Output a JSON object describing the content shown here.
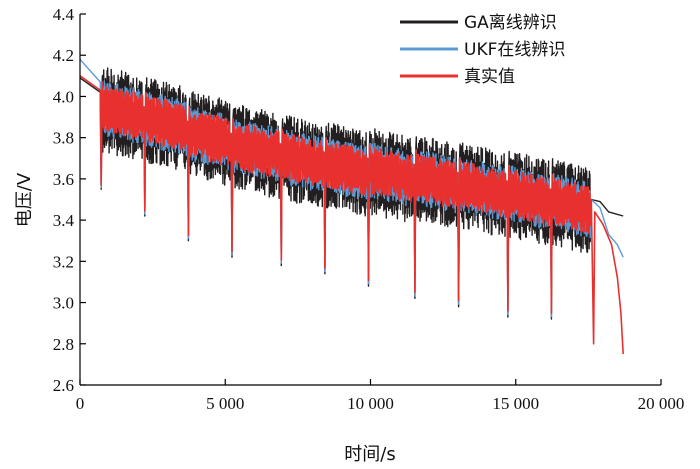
{
  "chart_data": {
    "type": "line",
    "title": "",
    "xlabel": "时间/s",
    "ylabel": "电压/V",
    "xlim": [
      0,
      20000
    ],
    "ylim": [
      2.6,
      4.4
    ],
    "x_ticks": [
      0,
      5000,
      10000,
      15000,
      20000
    ],
    "x_tick_labels": [
      "0",
      "5 000",
      "10 000",
      "15 000",
      "20 000"
    ],
    "y_ticks": [
      2.6,
      2.8,
      3.0,
      3.2,
      3.4,
      3.6,
      3.8,
      4.0,
      4.2,
      4.4
    ],
    "y_tick_labels": [
      "2.6",
      "2.8",
      "3.0",
      "3.2",
      "3.4",
      "3.6",
      "3.8",
      "4.0",
      "4.2",
      "4.4"
    ],
    "grid": false,
    "legend_position": "top-right",
    "pulse_segments": [
      {
        "start": 700,
        "end": 2200,
        "base": 3.95,
        "dip": 3.55
      },
      {
        "start": 2200,
        "end": 3700,
        "base": 3.9,
        "dip": 3.42
      },
      {
        "start": 3700,
        "end": 5200,
        "base": 3.83,
        "dip": 3.3
      },
      {
        "start": 5200,
        "end": 6900,
        "base": 3.77,
        "dip": 3.22
      },
      {
        "start": 6900,
        "end": 8400,
        "base": 3.72,
        "dip": 3.18
      },
      {
        "start": 8400,
        "end": 9900,
        "base": 3.68,
        "dip": 3.14
      },
      {
        "start": 9900,
        "end": 11500,
        "base": 3.65,
        "dip": 3.08
      },
      {
        "start": 11500,
        "end": 13000,
        "base": 3.62,
        "dip": 3.02
      },
      {
        "start": 13000,
        "end": 14700,
        "base": 3.58,
        "dip": 2.98
      },
      {
        "start": 14700,
        "end": 16200,
        "base": 3.54,
        "dip": 2.93
      },
      {
        "start": 16200,
        "end": 17600,
        "base": 3.5,
        "dip": 2.92
      }
    ],
    "series": [
      {
        "name": "GA离线辨识",
        "color": "#231f20",
        "amplitude_up": 0.2,
        "amplitude_down": 0.22,
        "head": [
          [
            0,
            4.09
          ],
          [
            700,
            4.02
          ]
        ],
        "tail": [
          [
            17600,
            3.5
          ],
          [
            17900,
            3.49
          ],
          [
            18200,
            3.44
          ],
          [
            18700,
            3.42
          ]
        ]
      },
      {
        "name": "UKF在线辨识",
        "color": "#5b9bd5",
        "amplitude_up": 0.13,
        "amplitude_down": 0.14,
        "head": [
          [
            0,
            4.18
          ],
          [
            250,
            4.14
          ],
          [
            700,
            4.07
          ]
        ],
        "tail": [
          [
            17600,
            3.5
          ],
          [
            17900,
            3.46
          ],
          [
            18200,
            3.33
          ],
          [
            18500,
            3.28
          ],
          [
            18700,
            3.22
          ]
        ]
      },
      {
        "name": "真实值",
        "color": "#e8312f",
        "amplitude_up": 0.11,
        "amplitude_down": 0.12,
        "head": [
          [
            0,
            4.1
          ],
          [
            700,
            4.03
          ]
        ],
        "tail": [
          [
            17600,
            3.5
          ],
          [
            17680,
            2.8
          ],
          [
            17720,
            3.44
          ],
          [
            18000,
            3.38
          ],
          [
            18300,
            3.28
          ],
          [
            18500,
            3.12
          ],
          [
            18620,
            2.95
          ],
          [
            18700,
            2.75
          ]
        ]
      }
    ]
  }
}
